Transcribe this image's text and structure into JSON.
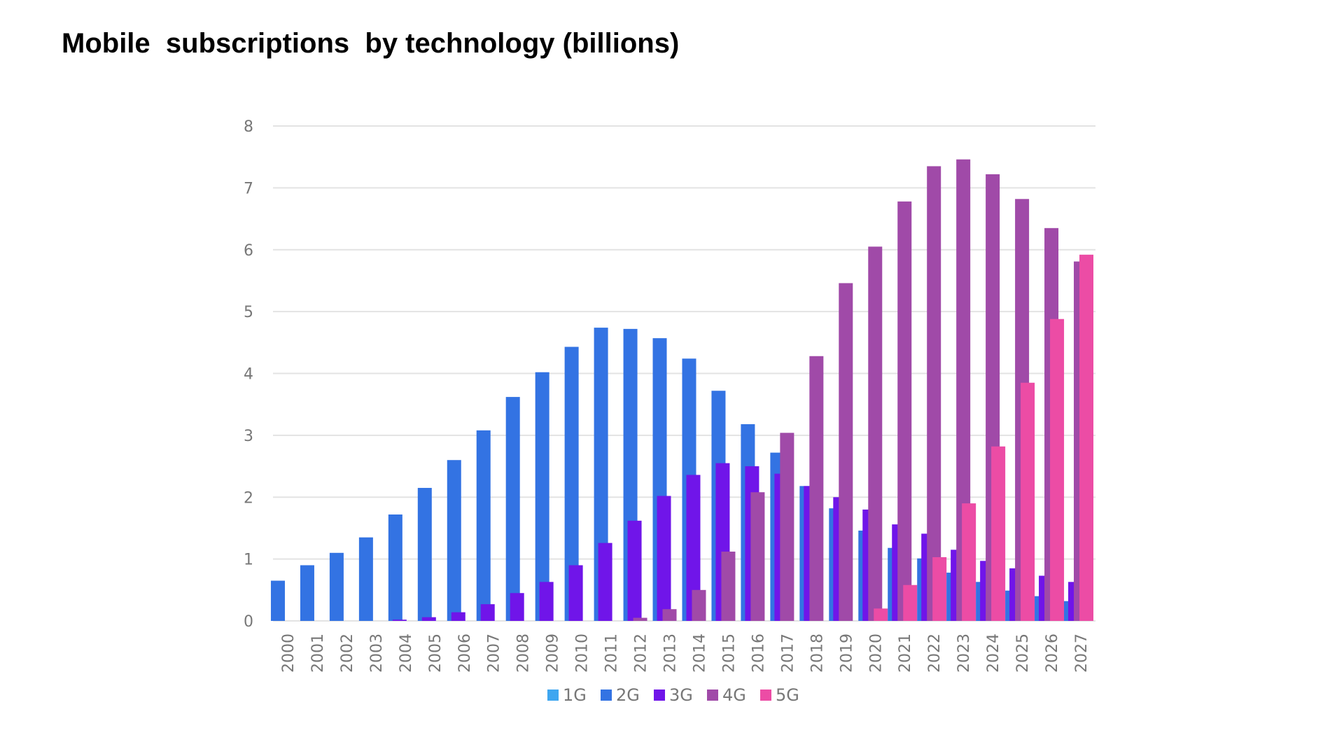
{
  "title": "Mobile  subscriptions  by technology (billions)",
  "chart_data": {
    "type": "bar",
    "title": "Mobile subscriptions by technology (billions)",
    "xlabel": "",
    "ylabel": "",
    "ylim": [
      0,
      8
    ],
    "yticks": [
      0,
      1,
      2,
      3,
      4,
      5,
      6,
      7,
      8
    ],
    "grid": true,
    "legend_position": "bottom",
    "categories": [
      "2000",
      "2001",
      "2002",
      "2003",
      "2004",
      "2005",
      "2006",
      "2007",
      "2008",
      "2009",
      "2010",
      "2011",
      "2012",
      "2013",
      "2014",
      "2015",
      "2016",
      "2017",
      "2018",
      "2019",
      "2020",
      "2021",
      "2022",
      "2023",
      "2024",
      "2025",
      "2026",
      "2027"
    ],
    "series": [
      {
        "name": "1G",
        "color": "#3fa6f0",
        "values": [
          0.01,
          0.01,
          0.0,
          0.0,
          0.0,
          0.0,
          0.0,
          0.0,
          0.0,
          0.0,
          0.0,
          0.0,
          0.0,
          0.0,
          0.0,
          0.0,
          0.0,
          0.0,
          0.0,
          0.0,
          0.0,
          0.0,
          0.0,
          0.0,
          0.0,
          0.0,
          0.0,
          0.0
        ]
      },
      {
        "name": "2G",
        "color": "#3373e3",
        "values": [
          0.65,
          0.9,
          1.1,
          1.35,
          1.72,
          2.15,
          2.6,
          3.08,
          3.62,
          4.02,
          4.43,
          4.74,
          4.72,
          4.57,
          4.24,
          3.72,
          3.18,
          2.72,
          2.18,
          1.82,
          1.46,
          1.18,
          1.01,
          0.78,
          0.63,
          0.49,
          0.4,
          0.32
        ]
      },
      {
        "name": "3G",
        "color": "#7015e9",
        "values": [
          0.0,
          0.0,
          0.0,
          0.0,
          0.02,
          0.06,
          0.14,
          0.27,
          0.45,
          0.63,
          0.9,
          1.26,
          1.62,
          2.02,
          2.36,
          2.55,
          2.5,
          2.38,
          2.18,
          2.0,
          1.8,
          1.56,
          1.41,
          1.15,
          0.97,
          0.85,
          0.73,
          0.63
        ]
      },
      {
        "name": "4G",
        "color": "#a04aa8",
        "values": [
          0.0,
          0.0,
          0.0,
          0.0,
          0.0,
          0.0,
          0.0,
          0.0,
          0.0,
          0.0,
          0.0,
          0.0,
          0.05,
          0.19,
          0.5,
          1.12,
          2.08,
          3.04,
          4.28,
          5.46,
          6.05,
          6.78,
          7.35,
          7.46,
          7.22,
          6.82,
          6.35,
          5.81
        ]
      },
      {
        "name": "5G",
        "color": "#ec4ca5",
        "values": [
          0.0,
          0.0,
          0.0,
          0.0,
          0.0,
          0.0,
          0.0,
          0.0,
          0.0,
          0.0,
          0.0,
          0.0,
          0.0,
          0.0,
          0.0,
          0.0,
          0.0,
          0.0,
          0.0,
          0.0,
          0.2,
          0.58,
          1.03,
          1.9,
          2.82,
          3.85,
          4.88,
          5.92
        ]
      }
    ]
  }
}
